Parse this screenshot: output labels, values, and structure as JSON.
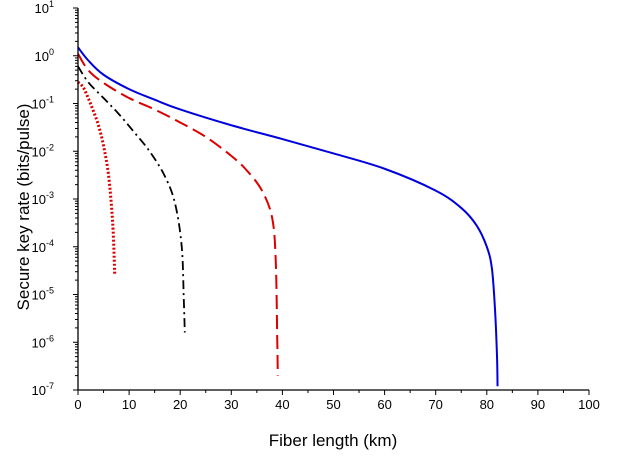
{
  "chart_data": {
    "type": "line",
    "xlabel": "Fiber length (km)",
    "ylabel": "Secure key rate (bits/pulse)",
    "xlim": [
      0,
      100
    ],
    "ylim": [
      1e-07,
      10
    ],
    "yscale": "log",
    "xticks": [
      "0",
      "10",
      "20",
      "30",
      "40",
      "50",
      "60",
      "70",
      "80",
      "90",
      "100"
    ],
    "yticks": [
      {
        "base": "10",
        "exp": "1"
      },
      {
        "base": "10",
        "exp": "0"
      },
      {
        "base": "10",
        "exp": "-1"
      },
      {
        "base": "10",
        "exp": "-2"
      },
      {
        "base": "10",
        "exp": "-3"
      },
      {
        "base": "10",
        "exp": "-4"
      },
      {
        "base": "10",
        "exp": "-5"
      },
      {
        "base": "10",
        "exp": "-6"
      },
      {
        "base": "10",
        "exp": "-7"
      }
    ],
    "grid": false,
    "legend": "none",
    "series": [
      {
        "color": "#0000dd",
        "dash": "solid",
        "x": [
          0,
          2,
          5,
          10,
          15,
          20,
          30,
          40,
          50,
          60,
          70,
          75,
          78,
          80,
          81,
          81.6,
          82,
          82.1
        ],
        "y": [
          1.5,
          0.8,
          0.4,
          0.2,
          0.12,
          0.075,
          0.035,
          0.018,
          0.009,
          0.0043,
          0.0015,
          0.00065,
          0.00028,
          0.0001,
          3.5e-05,
          5e-06,
          5e-07,
          1.2e-07
        ]
      },
      {
        "color": "#dd0000",
        "dash": "dashed",
        "x": [
          0,
          2,
          5,
          10,
          15,
          20,
          25,
          30,
          33,
          36,
          38,
          38.7,
          39,
          39.1
        ],
        "y": [
          1.1,
          0.5,
          0.27,
          0.13,
          0.075,
          0.04,
          0.02,
          0.008,
          0.004,
          0.0015,
          0.0004,
          5e-05,
          1e-06,
          2e-07
        ]
      },
      {
        "color": "#000000",
        "dash": "dashdot",
        "x": [
          0,
          2,
          5,
          8,
          11,
          14,
          17,
          19,
          20.3,
          20.7,
          20.9
        ],
        "y": [
          0.6,
          0.28,
          0.13,
          0.06,
          0.025,
          0.01,
          0.003,
          0.0008,
          0.0001,
          8e-06,
          1.6e-06
        ]
      },
      {
        "color": "#dd0000",
        "dash": "dotted",
        "x": [
          0,
          1,
          2,
          3,
          4,
          5,
          6,
          6.8,
          7.2
        ],
        "y": [
          0.28,
          0.22,
          0.13,
          0.07,
          0.035,
          0.013,
          0.003,
          0.0003,
          2.5e-05
        ]
      }
    ]
  }
}
